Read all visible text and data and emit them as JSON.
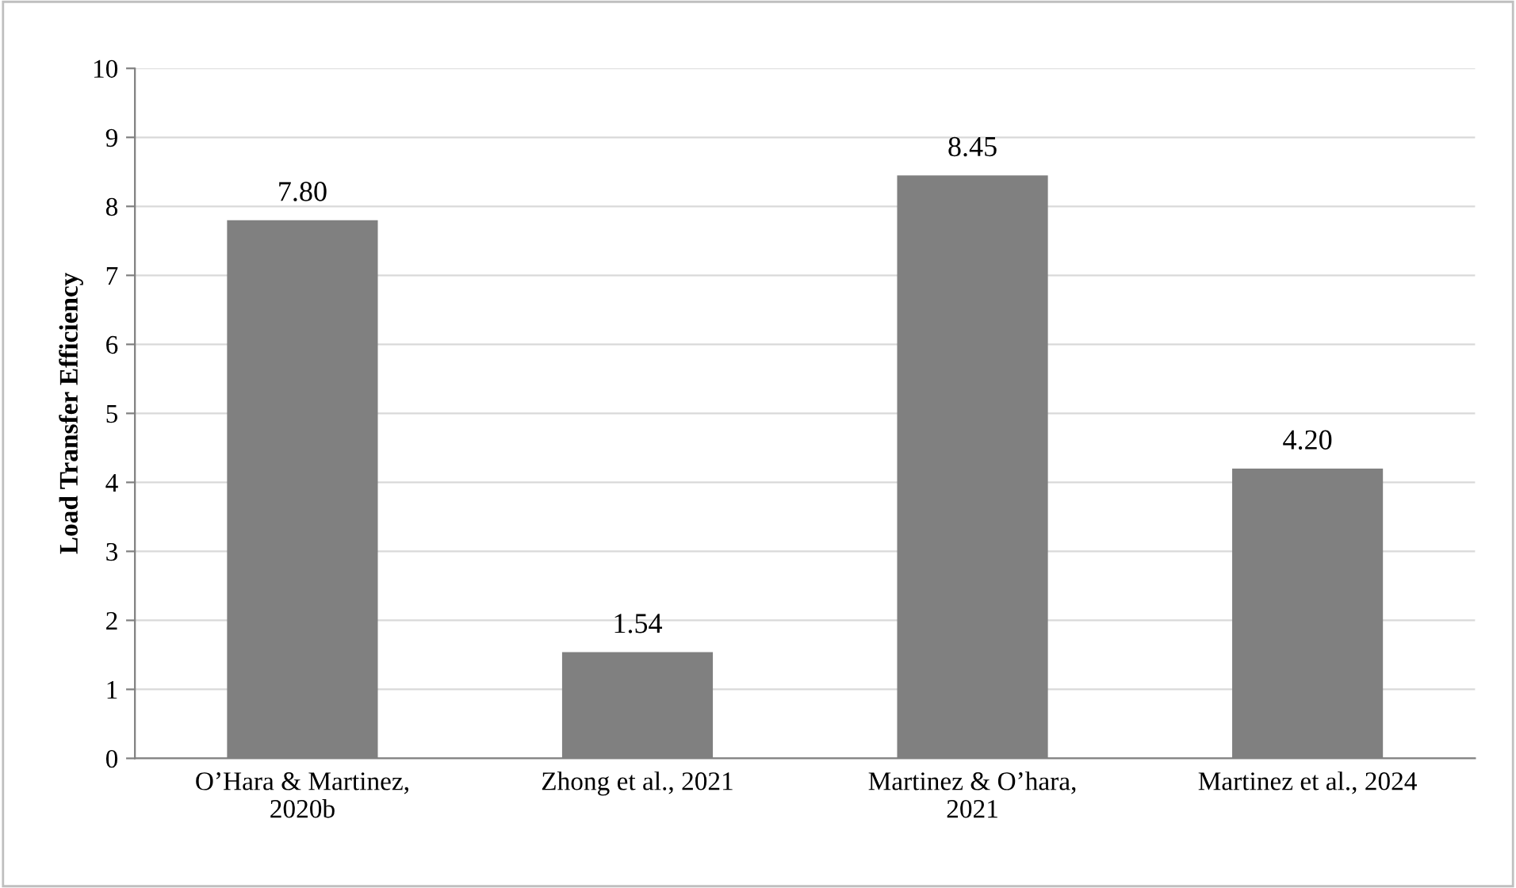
{
  "chart_data": {
    "type": "bar",
    "ylabel": "Load Transfer Efficiency",
    "categories": [
      "O’Hara & Martinez,\n2020b",
      "Zhong et al., 2021",
      "Martinez & O’hara,\n2021",
      "Martinez et al., 2024"
    ],
    "values": [
      7.8,
      1.54,
      8.45,
      4.2
    ],
    "value_labels": [
      "7.80",
      "1.54",
      "8.45",
      "4.20"
    ],
    "color": "#808080",
    "ylim": [
      0,
      10
    ],
    "yticks": [
      0,
      1,
      2,
      3,
      4,
      5,
      6,
      7,
      8,
      9,
      10
    ],
    "grid": "y",
    "legend": false
  }
}
